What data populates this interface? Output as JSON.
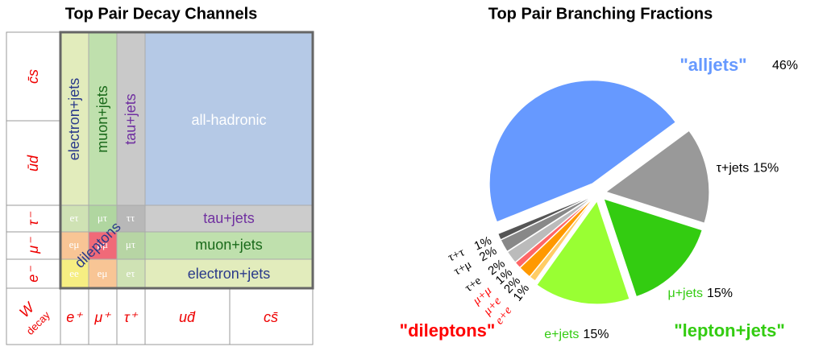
{
  "diagram": {
    "title": "Top Pair Decay Channels",
    "corner": [
      "W",
      "decay"
    ],
    "row_labels": [
      "c̄s",
      "ūd",
      "τ⁻",
      "μ⁻",
      "e⁻"
    ],
    "col_labels": [
      "e⁺",
      "μ⁺",
      "τ⁺",
      "ud̄",
      "cs̄"
    ],
    "columns": [
      "electron+jets",
      "muon+jets",
      "tau+jets",
      "all-hadronic"
    ],
    "rows": [
      "tau+jets",
      "muon+jets",
      "electron+jets"
    ],
    "cells": [
      [
        "eτ",
        "μτ",
        "ττ"
      ],
      [
        "eμ",
        "μμ",
        "μτ"
      ],
      [
        "ee",
        "eμ",
        "eτ"
      ]
    ],
    "dileptons": "dileptons"
  },
  "chart_data": {
    "type": "pie",
    "title": "Top Pair Branching Fractions",
    "categories": [
      "\"alljets\"",
      "τ+jets",
      "μ+jets",
      "e+jets",
      "e+e",
      "μ+e",
      "μ+μ",
      "τ+e",
      "τ+μ",
      "τ+τ"
    ],
    "values": [
      46,
      15,
      15,
      15,
      1,
      2,
      1,
      2,
      2,
      1
    ],
    "value_labels": [
      "46%",
      "15%",
      "15%",
      "15%",
      "1%",
      "2%",
      "1%",
      "2%",
      "2%",
      "1%"
    ],
    "colors": [
      "#6699ff",
      "#999999",
      "#33cc11",
      "#99ff33",
      "#ffcc66",
      "#ff9900",
      "#ff6666",
      "#bbbbbb",
      "#888888",
      "#555555"
    ],
    "label_colors": [
      "#6699ff",
      "#000000",
      "#33cc11",
      "#33cc11",
      "#ff0000",
      "#ff0000",
      "#ff0000",
      "#000000",
      "#000000",
      "#000000"
    ],
    "annotations": [
      {
        "text": "\"dileptons\"",
        "color": "#ff0000"
      },
      {
        "text": "\"lepton+jets\"",
        "color": "#33cc11"
      }
    ]
  }
}
